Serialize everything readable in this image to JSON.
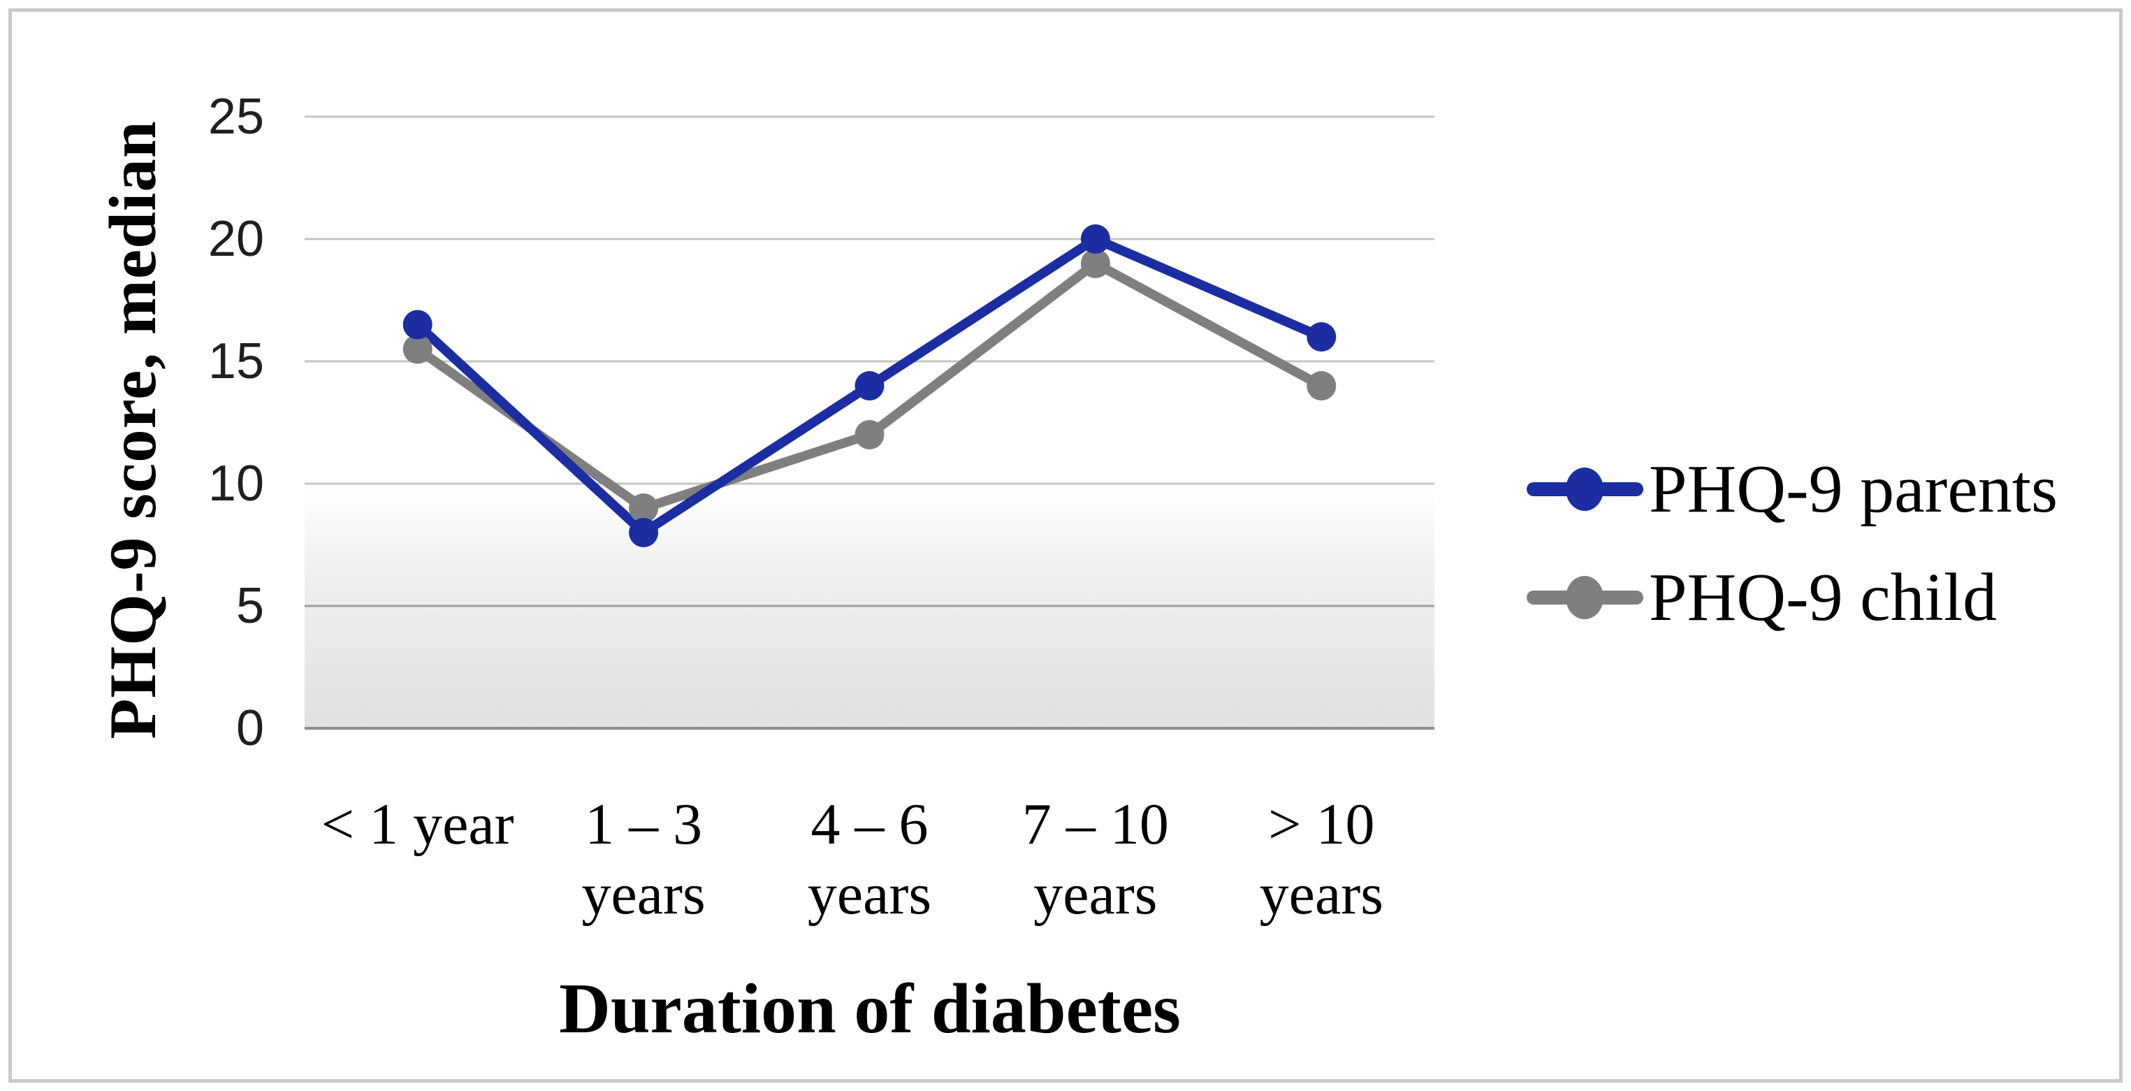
{
  "figure": {
    "background": "#ffffff",
    "border_color": "#c9c9c9"
  },
  "chart_data": {
    "type": "line",
    "title": "",
    "xlabel": "Duration of diabetes",
    "ylabel": "PHQ-9 score, median",
    "categories": [
      "< 1 year",
      "1 – 3\nyears",
      "4 – 6\nyears",
      "7 – 10\nyears",
      "> 10\nyears"
    ],
    "series": [
      {
        "name": "PHQ-9 parents",
        "color": "#1b2da1",
        "marker": "circle",
        "values": [
          16.5,
          8,
          14,
          20,
          16
        ]
      },
      {
        "name": "PHQ-9 child",
        "color": "#7f7f7f",
        "marker": "circle",
        "values": [
          15.5,
          9,
          12,
          19,
          14
        ]
      }
    ],
    "y_ticks": [
      0,
      5,
      10,
      15,
      20,
      25
    ],
    "ylim": [
      0,
      25
    ],
    "grid": true,
    "legend_position": "right",
    "plot_area_gradient_bottom": "#e1e1e1",
    "gridline_color": "#c5c5c5",
    "gridline_color_dark": "#8e8e8e"
  }
}
